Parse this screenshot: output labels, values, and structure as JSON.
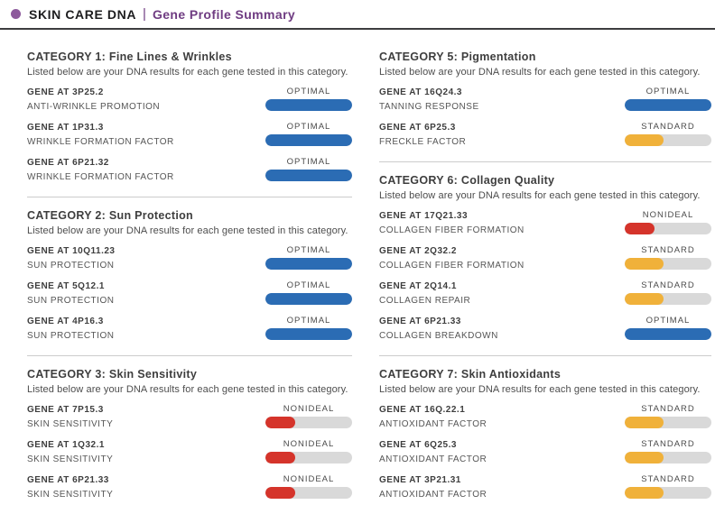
{
  "header": {
    "brand": "SKIN CARE DNA",
    "separator": "|",
    "title": "Gene Profile Summary"
  },
  "category_note": "Listed below are your DNA results for each gene tested in this category.",
  "colors": {
    "accent_purple": "#6f3c82",
    "header_dot_purple": "#8d5a9c",
    "optimal_blue": "#2b6cb4",
    "standard_yellow": "#f0b13a",
    "nonideal_red": "#d5342b",
    "meter_track_gray": "#d9d9d9"
  },
  "status_meter": {
    "OPTIMAL": {
      "label": "OPTIMAL",
      "fill_percent": 100
    },
    "STANDARD": {
      "label": "STANDARD",
      "fill_percent": 45
    },
    "NONIDEAL": {
      "label": "NONIDEAL",
      "fill_percent": 34
    }
  },
  "columns": [
    {
      "categories": [
        {
          "title": "CATEGORY 1: Fine Lines & Wrinkles",
          "rows": [
            {
              "gene": "GENE AT 3P25.2",
              "trait": "ANTI-WRINKLE PROMOTION",
              "status": "OPTIMAL"
            },
            {
              "gene": "GENE AT 1P31.3",
              "trait": "WRINKLE FORMATION FACTOR",
              "status": "OPTIMAL"
            },
            {
              "gene": "GENE AT 6P21.32",
              "trait": "WRINKLE FORMATION FACTOR",
              "status": "OPTIMAL"
            }
          ]
        },
        {
          "title": "CATEGORY 2: Sun Protection",
          "rows": [
            {
              "gene": "GENE AT 10Q11.23",
              "trait": "SUN PROTECTION",
              "status": "OPTIMAL"
            },
            {
              "gene": "GENE AT 5Q12.1",
              "trait": "SUN PROTECTION",
              "status": "OPTIMAL"
            },
            {
              "gene": "GENE AT 4P16.3",
              "trait": "SUN PROTECTION",
              "status": "OPTIMAL"
            }
          ]
        },
        {
          "title": "CATEGORY 3: Skin Sensitivity",
          "rows": [
            {
              "gene": "GENE AT 7P15.3",
              "trait": "SKIN SENSITIVITY",
              "status": "NONIDEAL"
            },
            {
              "gene": "GENE AT 1Q32.1",
              "trait": "SKIN SENSITIVITY",
              "status": "NONIDEAL"
            },
            {
              "gene": "GENE AT 6P21.33",
              "trait": "SKIN SENSITIVITY",
              "status": "NONIDEAL"
            }
          ]
        }
      ]
    },
    {
      "categories": [
        {
          "title": "CATEGORY 5: Pigmentation",
          "rows": [
            {
              "gene": "GENE AT 16Q24.3",
              "trait": "TANNING RESPONSE",
              "status": "OPTIMAL"
            },
            {
              "gene": "GENE AT 6P25.3",
              "trait": "FRECKLE FACTOR",
              "status": "STANDARD"
            }
          ]
        },
        {
          "title": "CATEGORY 6: Collagen Quality",
          "rows": [
            {
              "gene": "GENE AT 17Q21.33",
              "trait": "COLLAGEN FIBER FORMATION",
              "status": "NONIDEAL"
            },
            {
              "gene": "GENE AT 2Q32.2",
              "trait": "COLLAGEN FIBER FORMATION",
              "status": "STANDARD"
            },
            {
              "gene": "GENE AT 2Q14.1",
              "trait": "COLLAGEN REPAIR",
              "status": "STANDARD"
            },
            {
              "gene": "GENE AT 6P21.33",
              "trait": "COLLAGEN BREAKDOWN",
              "status": "OPTIMAL"
            }
          ]
        },
        {
          "title": "CATEGORY 7: Skin Antioxidants",
          "rows": [
            {
              "gene": "GENE AT 16Q.22.1",
              "trait": "ANTIOXIDANT FACTOR",
              "status": "STANDARD"
            },
            {
              "gene": "GENE AT 6Q25.3",
              "trait": "ANTIOXIDANT FACTOR",
              "status": "STANDARD"
            },
            {
              "gene": "GENE AT 3P21.31",
              "trait": "ANTIOXIDANT FACTOR",
              "status": "STANDARD"
            }
          ]
        }
      ]
    }
  ]
}
